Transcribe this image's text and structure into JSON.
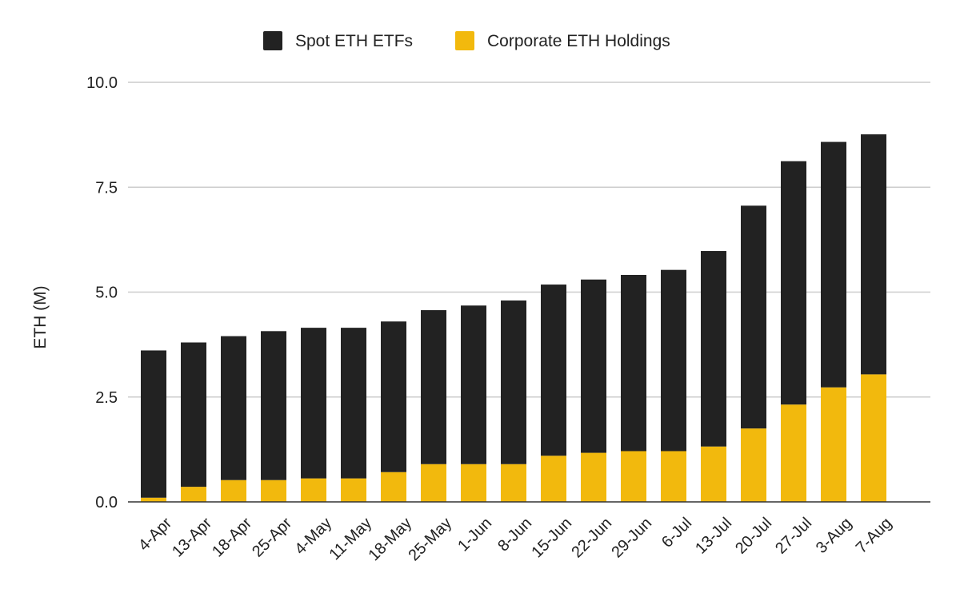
{
  "chart_data": {
    "type": "bar",
    "stacked": true,
    "title": "",
    "xlabel": "",
    "ylabel": "ETH (M)",
    "ylim": [
      0,
      10
    ],
    "yticks": [
      "0.0",
      "2.5",
      "5.0",
      "7.5",
      "10.0"
    ],
    "grid": true,
    "legend_position": "top-center",
    "categories": [
      "4-Apr",
      "13-Apr",
      "18-Apr",
      "25-Apr",
      "4-May",
      "11-May",
      "18-May",
      "25-May",
      "1-Jun",
      "8-Jun",
      "15-Jun",
      "22-Jun",
      "29-Jun",
      "6-Jul",
      "13-Jul",
      "20-Jul",
      "27-Jul",
      "3-Aug",
      "7-Aug"
    ],
    "series": [
      {
        "name": "Corporate ETH Holdings",
        "color": "#f2b90d",
        "values": [
          0.1,
          0.36,
          0.52,
          0.52,
          0.56,
          0.56,
          0.71,
          0.9,
          0.9,
          0.9,
          1.1,
          1.17,
          1.21,
          1.21,
          1.32,
          1.75,
          2.32,
          2.73,
          3.04
        ]
      },
      {
        "name": "Spot ETH ETFs",
        "color": "#222222",
        "values": [
          3.51,
          3.44,
          3.43,
          3.55,
          3.59,
          3.59,
          3.59,
          3.67,
          3.78,
          3.9,
          4.08,
          4.13,
          4.2,
          4.32,
          4.66,
          5.31,
          5.8,
          5.85,
          5.72
        ]
      }
    ]
  }
}
